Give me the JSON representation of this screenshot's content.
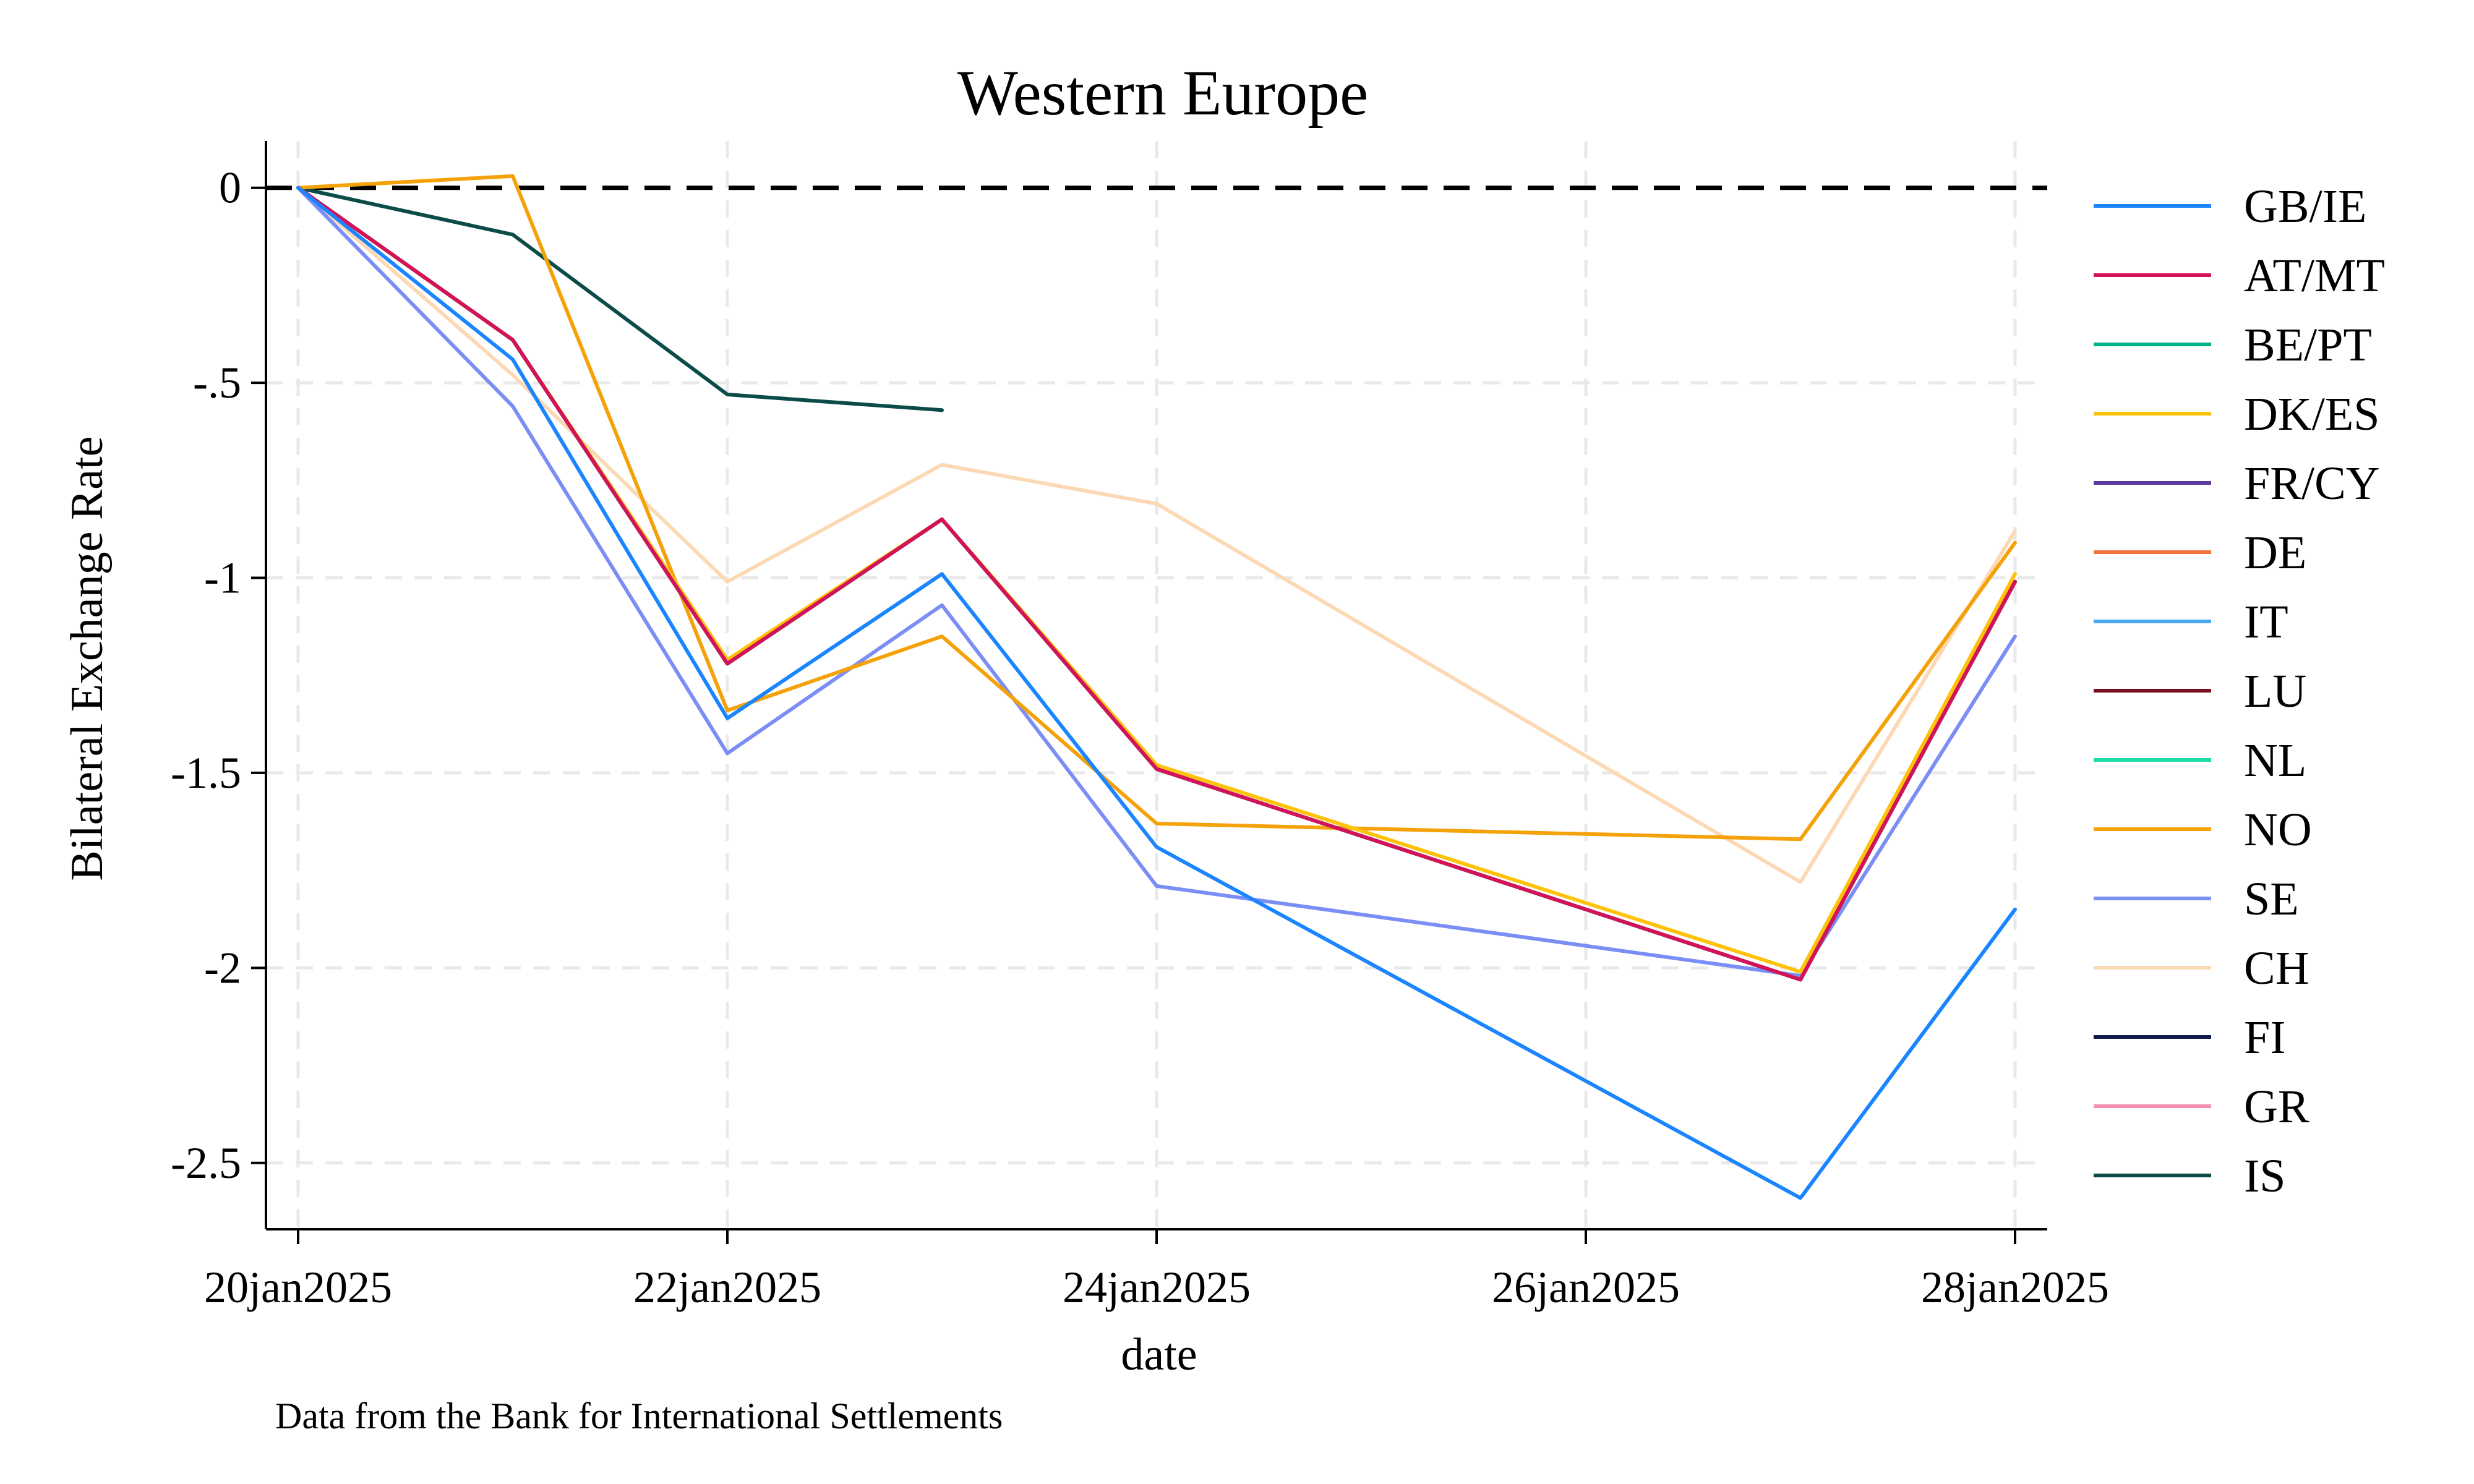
{
  "chart_data": {
    "type": "line",
    "title": "Western Europe",
    "xlabel": "date",
    "ylabel": "Bilateral Exchange Rate",
    "note": "Data from the Bank for International Settlements",
    "x": [
      "20jan2025",
      "21jan2025",
      "22jan2025",
      "23jan2025",
      "24jan2025",
      "27jan2025",
      "28jan2025"
    ],
    "x_ticks": [
      "20jan2025",
      "22jan2025",
      "24jan2025",
      "26jan2025",
      "28jan2025"
    ],
    "xlim": [
      "20jan2025",
      "28jan2025"
    ],
    "y_ticks": [
      0,
      -0.5,
      -1,
      -1.5,
      -2,
      -2.5
    ],
    "y_tick_labels": [
      "0",
      "-.5",
      "-1",
      "-1.5",
      "-2",
      "-2.5"
    ],
    "ylim": [
      -2.67,
      0.12
    ],
    "reference_line": {
      "y": 0,
      "style": "dashed",
      "color": "#000000"
    },
    "grid": true,
    "legend_position": "right",
    "series": [
      {
        "name": "GB/IE",
        "color": "#1a85ff",
        "values": [
          0,
          -0.44,
          -1.36,
          -0.99,
          -1.69,
          -2.59,
          -1.85
        ]
      },
      {
        "name": "AT/MT",
        "color": "#d41159",
        "values": [
          0,
          -0.39,
          -1.22,
          -0.85,
          -1.49,
          -2.03,
          -1.01
        ]
      },
      {
        "name": "BE/PT",
        "color": "#00b386",
        "values": [
          0,
          -0.39,
          -1.22,
          -0.85,
          -1.49,
          -2.03,
          -1.01
        ]
      },
      {
        "name": "DK/ES",
        "color": "#ffc20a",
        "values": [
          0,
          -0.39,
          -1.21,
          -0.85,
          -1.48,
          -2.01,
          -0.99
        ]
      },
      {
        "name": "FR/CY",
        "color": "#5d3a9b",
        "values": [
          0,
          -0.39,
          -1.22,
          -0.85,
          -1.49,
          -2.03,
          -1.01
        ]
      },
      {
        "name": "DE",
        "color": "#f4703c",
        "values": [
          0,
          -0.39,
          -1.22,
          -0.85,
          -1.49,
          -2.03,
          -1.01
        ]
      },
      {
        "name": "IT",
        "color": "#47a9ee",
        "values": [
          0,
          -0.39,
          -1.22,
          -0.85,
          -1.49,
          -2.03,
          -1.01
        ]
      },
      {
        "name": "LU",
        "color": "#7a0f1e",
        "values": [
          0,
          -0.39,
          -1.22,
          -0.85,
          -1.49,
          -2.03,
          -1.01
        ]
      },
      {
        "name": "NL",
        "color": "#1fdca8",
        "values": [
          0,
          -0.39,
          -1.22,
          -0.85,
          -1.49,
          -2.03,
          -1.01
        ]
      },
      {
        "name": "NO",
        "color": "#f5a20a",
        "values": [
          0,
          0.03,
          -1.34,
          -1.15,
          -1.63,
          -1.67,
          -0.91
        ]
      },
      {
        "name": "SE",
        "color": "#7b8ef5",
        "values": [
          0,
          -0.56,
          -1.45,
          -1.07,
          -1.79,
          -2.02,
          -1.15
        ]
      },
      {
        "name": "CH",
        "color": "#fcd9b4",
        "values": [
          0,
          -0.48,
          -1.01,
          -0.71,
          -0.81,
          -1.78,
          -0.88
        ]
      },
      {
        "name": "FI",
        "color": "#0f1c4d",
        "values": [
          0,
          -0.39,
          -1.22,
          -0.85,
          -1.49,
          -2.03,
          -1.01
        ]
      },
      {
        "name": "GR",
        "color": "#f591b0",
        "values": [
          0,
          -0.39,
          -1.22,
          -0.85,
          -1.49,
          -2.03,
          -1.01
        ]
      },
      {
        "name": "IS",
        "color": "#0c4c48",
        "values": [
          0,
          -0.12,
          -0.53,
          -0.57,
          null,
          null,
          null
        ]
      }
    ]
  }
}
